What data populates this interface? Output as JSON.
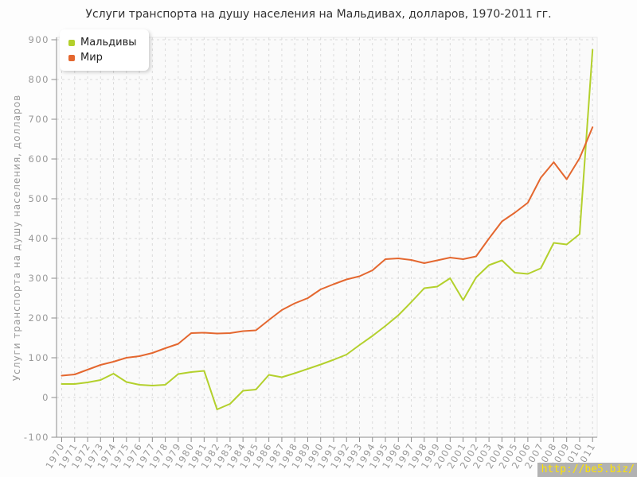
{
  "watermark": {
    "text": "http://be5.biz/",
    "color": "#ffe400",
    "bg": "#b2b2b2"
  },
  "chart_data": {
    "type": "line",
    "title": "Услуги транспорта на душу населения на Мальдивах, долларов, 1970-2011 гг.",
    "xlabel": "",
    "ylabel": "Услуги транспорта на душу населения, долларов",
    "ylim": [
      -100,
      900
    ],
    "ytick_step": 100,
    "grid": true,
    "legend_position": "top-left",
    "x": [
      1970,
      1971,
      1972,
      1973,
      1974,
      1975,
      1976,
      1977,
      1978,
      1979,
      1980,
      1981,
      1982,
      1983,
      1984,
      1985,
      1986,
      1987,
      1988,
      1989,
      1990,
      1991,
      1992,
      1993,
      1994,
      1995,
      1996,
      1997,
      1998,
      1999,
      2000,
      2001,
      2002,
      2003,
      2004,
      2005,
      2006,
      2007,
      2008,
      2009,
      2010,
      2011
    ],
    "series": [
      {
        "id": "maldives",
        "name": "Мальдивы",
        "color": "#b3d02c",
        "values": [
          34,
          34,
          38,
          44,
          60,
          39,
          32,
          30,
          32,
          59,
          64,
          67,
          -30,
          -16,
          17,
          20,
          57,
          51,
          61,
          72,
          83,
          95,
          108,
          132,
          155,
          180,
          207,
          240,
          275,
          279,
          300,
          245,
          302,
          333,
          345,
          314,
          311,
          325,
          389,
          385,
          411,
          875
        ]
      },
      {
        "id": "world",
        "name": "Мир",
        "color": "#e4672f",
        "values": [
          55,
          58,
          70,
          82,
          90,
          100,
          104,
          112,
          124,
          135,
          162,
          163,
          161,
          162,
          167,
          169,
          195,
          220,
          237,
          250,
          272,
          285,
          297,
          305,
          320,
          348,
          350,
          346,
          338,
          345,
          352,
          348,
          355,
          400,
          443,
          465,
          490,
          553,
          592,
          549,
          602,
          680
        ]
      }
    ]
  }
}
